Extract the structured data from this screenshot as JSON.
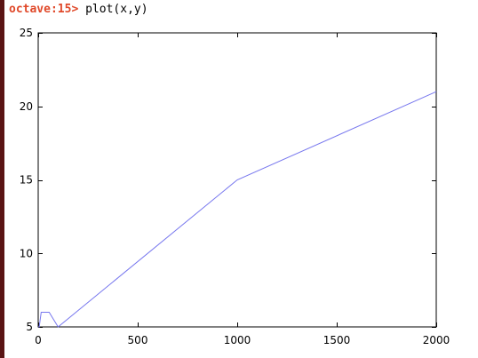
{
  "terminal": {
    "prompt": "octave:15>",
    "command": " plot(x,y)"
  },
  "colors": {
    "prompt": "#e0492a",
    "series": "#7777ee",
    "axes": "#000000",
    "window_edge": "#5a1414"
  },
  "chart_data": {
    "type": "line",
    "title": "",
    "xlabel": "",
    "ylabel": "",
    "xlim": [
      0,
      2000
    ],
    "ylim": [
      5,
      25
    ],
    "xticks": [
      0,
      500,
      1000,
      1500,
      2000
    ],
    "yticks": [
      5,
      10,
      15,
      20,
      25
    ],
    "xtick_labels": [
      "0",
      "500",
      "1000",
      "1500",
      "2000"
    ],
    "ytick_labels": [
      "5",
      "10",
      "15",
      "20",
      "25"
    ],
    "grid": false,
    "series": [
      {
        "x": [
          0,
          5,
          15,
          25,
          40,
          55,
          100,
          1000,
          2000
        ],
        "y": [
          5,
          5,
          6,
          6,
          6,
          6,
          5,
          15,
          21
        ]
      }
    ]
  }
}
